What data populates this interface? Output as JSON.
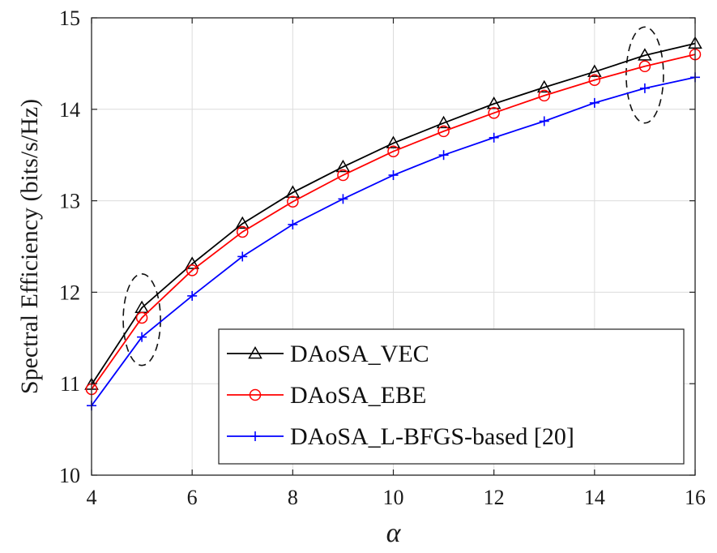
{
  "chart_data": {
    "type": "line",
    "xlabel": "α",
    "ylabel": "Spectral Efficiency (bits/s/Hz)",
    "xlim": [
      4,
      16
    ],
    "ylim": [
      10,
      15
    ],
    "xticks": [
      "4",
      "6",
      "8",
      "10",
      "12",
      "14",
      "16"
    ],
    "yticks": [
      "10",
      "11",
      "12",
      "13",
      "14",
      "15"
    ],
    "grid": true,
    "legend_position": "bottom-right",
    "x": [
      4,
      5,
      6,
      7,
      8,
      9,
      10,
      11,
      12,
      13,
      14,
      15,
      16
    ],
    "series": [
      {
        "name": "DAoSA_VEC",
        "color": "#000000",
        "marker": "triangle",
        "values": [
          10.99,
          11.83,
          12.31,
          12.75,
          13.09,
          13.37,
          13.63,
          13.85,
          14.06,
          14.24,
          14.41,
          14.59,
          14.72
        ]
      },
      {
        "name": "DAoSA_EBE",
        "color": "#ff0000",
        "marker": "circle",
        "values": [
          10.94,
          11.72,
          12.24,
          12.66,
          12.99,
          13.28,
          13.54,
          13.76,
          13.96,
          14.15,
          14.32,
          14.47,
          14.6
        ]
      },
      {
        "name": "DAoSA_L-BFGS-based [20]",
        "color": "#0000ff",
        "marker": "plus",
        "values": [
          10.76,
          11.51,
          11.96,
          12.39,
          12.74,
          13.02,
          13.28,
          13.5,
          13.69,
          13.87,
          14.07,
          14.23,
          14.35
        ]
      }
    ],
    "annotations": [
      {
        "type": "dashed-ellipse",
        "x": 5,
        "y_range": [
          11.2,
          12.2
        ]
      },
      {
        "type": "dashed-ellipse",
        "x": 15,
        "y_range": [
          13.85,
          14.9
        ]
      }
    ]
  }
}
